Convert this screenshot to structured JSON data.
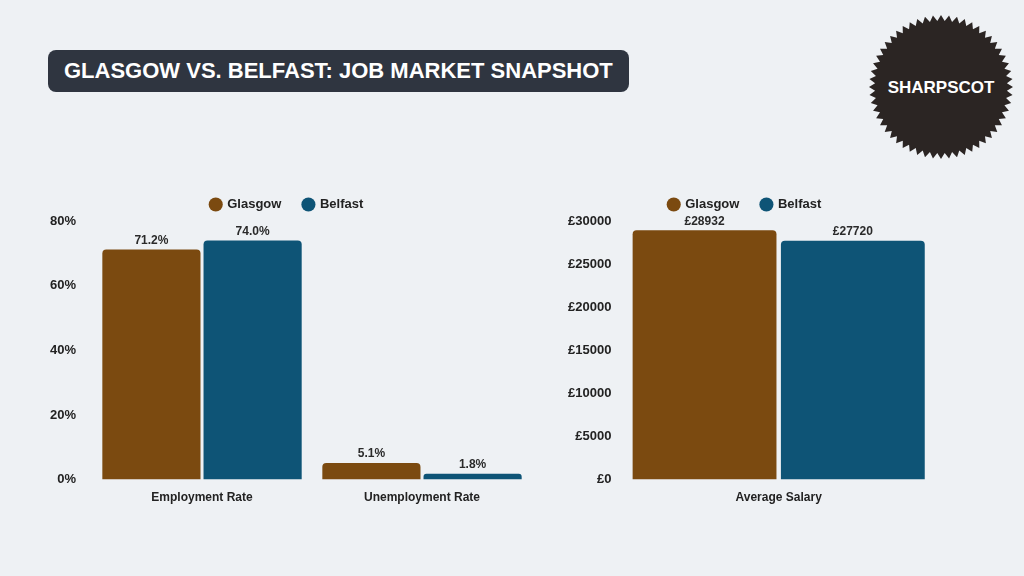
{
  "header": {
    "title": "GLASGOW VS. BELFAST: JOB MARKET SNAPSHOT",
    "logo": "SHARPSCOT"
  },
  "chart_data": [
    {
      "type": "bar",
      "categories": [
        "Employment Rate",
        "Unemployment Rate"
      ],
      "series": [
        {
          "name": "Glasgow",
          "color": "#7b4a10",
          "values": [
            71.2,
            5.1
          ],
          "value_labels": [
            "71.2%",
            "5.1%"
          ]
        },
        {
          "name": "Belfast",
          "color": "#0e5476",
          "values": [
            74.0,
            1.8
          ],
          "value_labels": [
            "74.0%",
            "1.8%"
          ]
        }
      ],
      "ylim": [
        0,
        80
      ],
      "yticks": [
        {
          "value": 0,
          "label": "0%"
        },
        {
          "value": 20,
          "label": "20%"
        },
        {
          "value": 40,
          "label": "40%"
        },
        {
          "value": 60,
          "label": "60%"
        },
        {
          "value": 80,
          "label": "80%"
        }
      ],
      "grid": false,
      "legend": "top",
      "data_labels": true
    },
    {
      "type": "bar",
      "categories": [
        "Average Salary"
      ],
      "series": [
        {
          "name": "Glasgow",
          "color": "#7b4a10",
          "values": [
            28932
          ],
          "value_labels": [
            "£28932"
          ]
        },
        {
          "name": "Belfast",
          "color": "#0e5476",
          "values": [
            27720
          ],
          "value_labels": [
            "£27720"
          ]
        }
      ],
      "ylim": [
        0,
        30000
      ],
      "yticks": [
        {
          "value": 0,
          "label": "£0"
        },
        {
          "value": 5000,
          "label": "£5000"
        },
        {
          "value": 10000,
          "label": "£10000"
        },
        {
          "value": 15000,
          "label": "£15000"
        },
        {
          "value": 20000,
          "label": "£20000"
        },
        {
          "value": 25000,
          "label": "£25000"
        },
        {
          "value": 30000,
          "label": "£30000"
        }
      ],
      "grid": false,
      "legend": "top",
      "data_labels": true
    }
  ]
}
